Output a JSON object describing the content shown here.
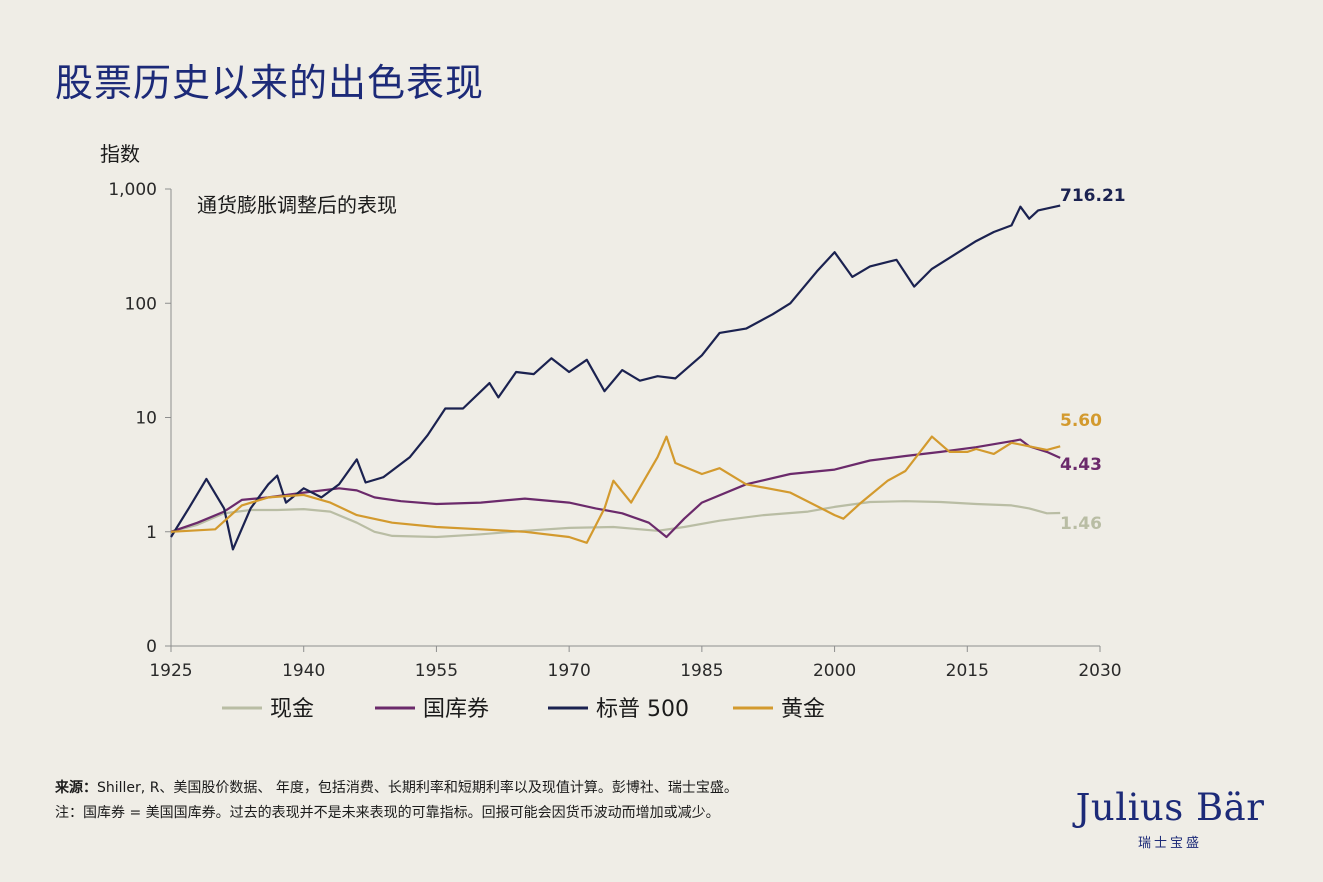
{
  "page": {
    "title": "股票历史以来的出色表现",
    "source_label": "来源：",
    "source_text": "Shiller, R、美国股价数据、 年度，包括消费、长期利率和短期利率以及现值计算。彭博社、瑞士宝盛。",
    "note_text": "注：国库券 = 美国国库券。过去的表现并不是未来表现的可靠指标。回报可能会因货币波动而增加或减少。",
    "logo_text": "Julius Bär",
    "logo_subtext": "瑞士宝盛"
  },
  "chart_data": {
    "type": "line",
    "ylabel": "指数",
    "subtitle": "通货膨胀调整后的表现",
    "y_scale": "log",
    "y_ticks": [
      {
        "label": "1,000",
        "value": 1000
      },
      {
        "label": "100",
        "value": 100
      },
      {
        "label": "10",
        "value": 10
      },
      {
        "label": "1",
        "value": 1
      },
      {
        "label": "0",
        "value": 0.1
      }
    ],
    "x_ticks": [
      1925,
      1940,
      1955,
      1970,
      1985,
      2000,
      2015,
      2030
    ],
    "xlim": [
      1925,
      2030
    ],
    "ylim": [
      0.1,
      1000
    ],
    "grid": false,
    "legend_placement": "bottom",
    "series": [
      {
        "name": "现金",
        "color": "#b9bda4",
        "end_label": "1.46",
        "points": [
          [
            1925,
            1.0
          ],
          [
            1928,
            1.15
          ],
          [
            1931,
            1.45
          ],
          [
            1934,
            1.55
          ],
          [
            1937,
            1.55
          ],
          [
            1940,
            1.58
          ],
          [
            1943,
            1.5
          ],
          [
            1946,
            1.2
          ],
          [
            1948,
            1.0
          ],
          [
            1950,
            0.92
          ],
          [
            1955,
            0.9
          ],
          [
            1960,
            0.95
          ],
          [
            1965,
            1.02
          ],
          [
            1970,
            1.08
          ],
          [
            1975,
            1.1
          ],
          [
            1980,
            1.02
          ],
          [
            1983,
            1.1
          ],
          [
            1987,
            1.25
          ],
          [
            1992,
            1.4
          ],
          [
            1997,
            1.5
          ],
          [
            2000,
            1.65
          ],
          [
            2004,
            1.82
          ],
          [
            2008,
            1.85
          ],
          [
            2012,
            1.82
          ],
          [
            2016,
            1.75
          ],
          [
            2020,
            1.7
          ],
          [
            2022,
            1.6
          ],
          [
            2024,
            1.45
          ],
          [
            2025.5,
            1.46
          ]
        ]
      },
      {
        "name": "国库券",
        "color": "#6b2a6b",
        "end_label": "4.43",
        "points": [
          [
            1925,
            1.0
          ],
          [
            1928,
            1.2
          ],
          [
            1931,
            1.5
          ],
          [
            1933,
            1.9
          ],
          [
            1936,
            2.0
          ],
          [
            1940,
            2.2
          ],
          [
            1944,
            2.4
          ],
          [
            1946,
            2.3
          ],
          [
            1948,
            2.0
          ],
          [
            1951,
            1.85
          ],
          [
            1955,
            1.75
          ],
          [
            1960,
            1.8
          ],
          [
            1965,
            1.95
          ],
          [
            1970,
            1.8
          ],
          [
            1973,
            1.6
          ],
          [
            1976,
            1.45
          ],
          [
            1979,
            1.2
          ],
          [
            1981,
            0.9
          ],
          [
            1983,
            1.3
          ],
          [
            1985,
            1.8
          ],
          [
            1990,
            2.6
          ],
          [
            1995,
            3.2
          ],
          [
            2000,
            3.5
          ],
          [
            2004,
            4.2
          ],
          [
            2008,
            4.6
          ],
          [
            2012,
            5.0
          ],
          [
            2016,
            5.5
          ],
          [
            2020,
            6.2
          ],
          [
            2021,
            6.4
          ],
          [
            2022,
            5.6
          ],
          [
            2024,
            5.0
          ],
          [
            2025.5,
            4.43
          ]
        ]
      },
      {
        "name": "标普 500",
        "color": "#1b2250",
        "end_label": "716.21",
        "points": [
          [
            1925,
            0.9
          ],
          [
            1927,
            1.6
          ],
          [
            1929,
            2.9
          ],
          [
            1931,
            1.6
          ],
          [
            1932,
            0.7
          ],
          [
            1934,
            1.6
          ],
          [
            1936,
            2.6
          ],
          [
            1937,
            3.1
          ],
          [
            1938,
            1.8
          ],
          [
            1940,
            2.4
          ],
          [
            1942,
            2.0
          ],
          [
            1944,
            2.6
          ],
          [
            1946,
            4.3
          ],
          [
            1947,
            2.7
          ],
          [
            1949,
            3.0
          ],
          [
            1952,
            4.5
          ],
          [
            1954,
            7.0
          ],
          [
            1956,
            12
          ],
          [
            1958,
            12
          ],
          [
            1961,
            20
          ],
          [
            1962,
            15
          ],
          [
            1964,
            25
          ],
          [
            1966,
            24
          ],
          [
            1968,
            33
          ],
          [
            1970,
            25
          ],
          [
            1972,
            32
          ],
          [
            1974,
            17
          ],
          [
            1976,
            26
          ],
          [
            1978,
            21
          ],
          [
            1980,
            23
          ],
          [
            1982,
            22
          ],
          [
            1985,
            35
          ],
          [
            1987,
            55
          ],
          [
            1990,
            60
          ],
          [
            1993,
            80
          ],
          [
            1995,
            100
          ],
          [
            1998,
            190
          ],
          [
            2000,
            280
          ],
          [
            2002,
            170
          ],
          [
            2004,
            210
          ],
          [
            2007,
            240
          ],
          [
            2009,
            140
          ],
          [
            2011,
            200
          ],
          [
            2013,
            250
          ],
          [
            2016,
            350
          ],
          [
            2018,
            420
          ],
          [
            2020,
            480
          ],
          [
            2021,
            700
          ],
          [
            2022,
            550
          ],
          [
            2023,
            650
          ],
          [
            2025.5,
            716.21
          ]
        ]
      },
      {
        "name": "黄金",
        "color": "#d39a2e",
        "end_label": "5.60",
        "points": [
          [
            1925,
            1.0
          ],
          [
            1930,
            1.05
          ],
          [
            1933,
            1.7
          ],
          [
            1936,
            2.0
          ],
          [
            1940,
            2.1
          ],
          [
            1943,
            1.8
          ],
          [
            1946,
            1.4
          ],
          [
            1950,
            1.2
          ],
          [
            1955,
            1.1
          ],
          [
            1960,
            1.05
          ],
          [
            1965,
            1.0
          ],
          [
            1970,
            0.9
          ],
          [
            1972,
            0.8
          ],
          [
            1974,
            1.6
          ],
          [
            1975,
            2.8
          ],
          [
            1977,
            1.8
          ],
          [
            1980,
            4.5
          ],
          [
            1981,
            6.8
          ],
          [
            1982,
            4.0
          ],
          [
            1985,
            3.2
          ],
          [
            1987,
            3.6
          ],
          [
            1990,
            2.6
          ],
          [
            1995,
            2.2
          ],
          [
            2000,
            1.4
          ],
          [
            2001,
            1.3
          ],
          [
            2003,
            1.8
          ],
          [
            2006,
            2.8
          ],
          [
            2008,
            3.4
          ],
          [
            2011,
            6.8
          ],
          [
            2013,
            5.0
          ],
          [
            2015,
            5.0
          ],
          [
            2016,
            5.3
          ],
          [
            2018,
            4.8
          ],
          [
            2020,
            6.0
          ],
          [
            2022,
            5.6
          ],
          [
            2024,
            5.2
          ],
          [
            2025.5,
            5.6
          ]
        ]
      }
    ]
  }
}
